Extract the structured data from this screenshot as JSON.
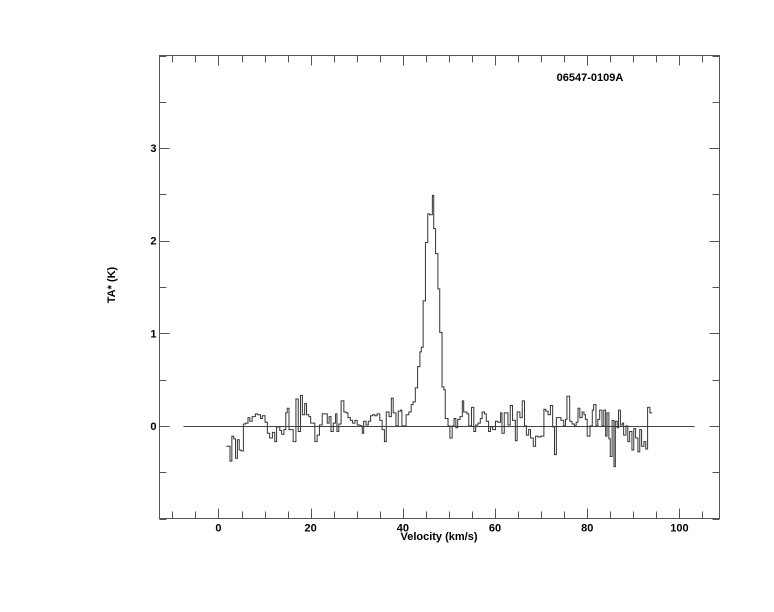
{
  "chart_data": {
    "type": "line",
    "style": "histogram-step",
    "title": "06547-0109A",
    "xlabel": "Velocity (km/s)",
    "ylabel": "TA* (K)",
    "xlim": [
      -12.8,
      108.7
    ],
    "ylim": [
      -1,
      4
    ],
    "x_ticks": [
      0,
      20,
      40,
      60,
      80,
      100
    ],
    "x_minor_step": 5,
    "y_ticks": [
      0,
      1,
      2,
      3
    ],
    "y_minor_step": 0.5,
    "grid": false,
    "baseline": {
      "y": 0,
      "x_from": -7.6,
      "x_to": 103.3
    },
    "colors": {
      "line": "#333333",
      "frame": "#555555"
    },
    "series": [
      {
        "velocity_end": 94.1,
        "velocity": [
          1.7,
          2.5,
          2.9,
          3.3,
          3.7,
          4.1,
          4.5,
          4.9,
          5.4,
          5.9,
          6.4,
          6.8,
          7.3,
          8.0,
          8.5,
          9.1,
          9.5,
          10.1,
          10.6,
          11.1,
          11.7,
          12.2,
          12.6,
          13.3,
          13.7,
          14.2,
          14.6,
          14.9,
          15.3,
          16.2,
          16.8,
          17.3,
          17.8,
          18.2,
          18.7,
          19.1,
          19.6,
          20.0,
          20.9,
          21.4,
          21.9,
          22.5,
          23.6,
          24.0,
          24.4,
          24.9,
          25.4,
          25.7,
          26.1,
          26.6,
          27.2,
          27.7,
          28.1,
          28.6,
          29.1,
          29.6,
          30.1,
          30.7,
          31.2,
          31.5,
          32.0,
          32.5,
          33.0,
          33.4,
          33.9,
          34.4,
          35.0,
          35.5,
          36.0,
          36.4,
          37.0,
          37.5,
          37.9,
          38.5,
          39.0,
          39.5,
          39.8,
          40.7,
          41.3,
          41.8,
          42.2,
          42.7,
          43.2,
          43.7,
          44.0,
          44.4,
          44.9,
          45.4,
          45.8,
          46.4,
          46.7,
          47.1,
          47.6,
          48.0,
          48.5,
          48.9,
          49.2,
          49.8,
          50.2,
          50.7,
          51.1,
          51.5,
          51.9,
          52.4,
          52.9,
          53.2,
          53.9,
          54.3,
          54.9,
          55.4,
          55.8,
          56.3,
          56.8,
          57.2,
          57.7,
          58.1,
          58.6,
          59.0,
          59.5,
          60.1,
          60.6,
          61.2,
          61.5,
          62.0,
          62.8,
          63.3,
          63.8,
          64.4,
          64.8,
          65.4,
          65.9,
          66.4,
          66.8,
          67.3,
          67.7,
          68.3,
          68.8,
          69.3,
          69.9,
          70.6,
          71.0,
          71.5,
          72.0,
          72.5,
          72.9,
          73.3,
          73.8,
          74.3,
          74.9,
          75.3,
          75.6,
          76.2,
          76.7,
          77.2,
          77.6,
          78.0,
          78.4,
          78.9,
          79.3,
          79.6,
          80.0,
          80.6,
          81.1,
          81.4,
          81.9,
          82.3,
          82.7,
          83.2,
          83.6,
          84.0,
          84.3,
          84.7,
          85.0,
          85.4,
          85.8,
          86.1,
          86.5,
          86.8,
          87.2,
          87.6,
          87.9,
          88.4,
          88.8,
          89.2,
          89.7,
          90.1,
          90.5,
          91.0,
          91.4,
          91.8,
          92.3,
          92.7,
          93.1,
          93.6
        ],
        "ta": [
          -0.22,
          -0.38,
          -0.11,
          -0.14,
          -0.35,
          -0.15,
          -0.26,
          -0.27,
          0.02,
          0.03,
          0.09,
          0.05,
          0.1,
          0.13,
          0.12,
          0.08,
          0.11,
          0.04,
          -0.08,
          -0.13,
          -0.07,
          -0.17,
          -0.01,
          -0.05,
          -0.09,
          -0.04,
          0.14,
          0.19,
          -0.04,
          -0.17,
          0.29,
          -0.06,
          0.33,
          0.12,
          0.24,
          0.12,
          0.1,
          0.03,
          -0.17,
          -0.1,
          0.01,
          0.13,
          0.03,
          0.1,
          -0.06,
          0.03,
          0.13,
          -0.06,
          0.02,
          0.27,
          0.15,
          0.14,
          0.09,
          0.06,
          0.03,
          0.06,
          0.01,
          0.0,
          -0.08,
          0.05,
          0.01,
          0.05,
          0.11,
          0.12,
          0.11,
          0.13,
          0.06,
          -0.04,
          -0.17,
          0.15,
          0.1,
          0.3,
          0.14,
          0.0,
          0.16,
          0.17,
          0.0,
          0.12,
          0.15,
          0.23,
          0.26,
          0.41,
          0.64,
          0.8,
          0.85,
          1.35,
          1.98,
          2.29,
          2.28,
          2.49,
          2.13,
          1.86,
          1.48,
          1.01,
          0.42,
          0.39,
          0.08,
          0.0,
          -0.13,
          0.0,
          0.08,
          -0.02,
          0.07,
          0.1,
          0.27,
          0.15,
          0.13,
          0.0,
          0.2,
          -0.06,
          0.01,
          0.03,
          0.08,
          0.15,
          0.13,
          0.05,
          -0.06,
          -0.01,
          -0.04,
          0.05,
          0.04,
          0.14,
          -0.08,
          0.14,
          0.01,
          0.22,
          0.06,
          -0.16,
          0.15,
          0.09,
          0.27,
          0.0,
          -0.1,
          -0.04,
          -0.13,
          -0.22,
          -0.11,
          -0.12,
          -0.11,
          0.18,
          0.16,
          0.12,
          0.22,
          -0.01,
          -0.31,
          0.09,
          0.09,
          0.06,
          0.0,
          0.07,
          0.32,
          0.05,
          0.02,
          0.0,
          0.04,
          0.19,
          0.09,
          0.15,
          0.12,
          0.07,
          -0.11,
          0.0,
          0.17,
          0.23,
          0.0,
          0.07,
          0.17,
          0.0,
          0.17,
          -0.11,
          0.14,
          -0.14,
          -0.33,
          0.06,
          -0.44,
          0.05,
          -0.02,
          0.17,
          0.01,
          0.03,
          -0.1,
          0.0,
          -0.17,
          -0.06,
          -0.26,
          -0.03,
          -0.13,
          -0.28,
          -0.04,
          -0.22,
          -0.17,
          -0.25,
          0.2,
          0.14
        ]
      }
    ]
  }
}
